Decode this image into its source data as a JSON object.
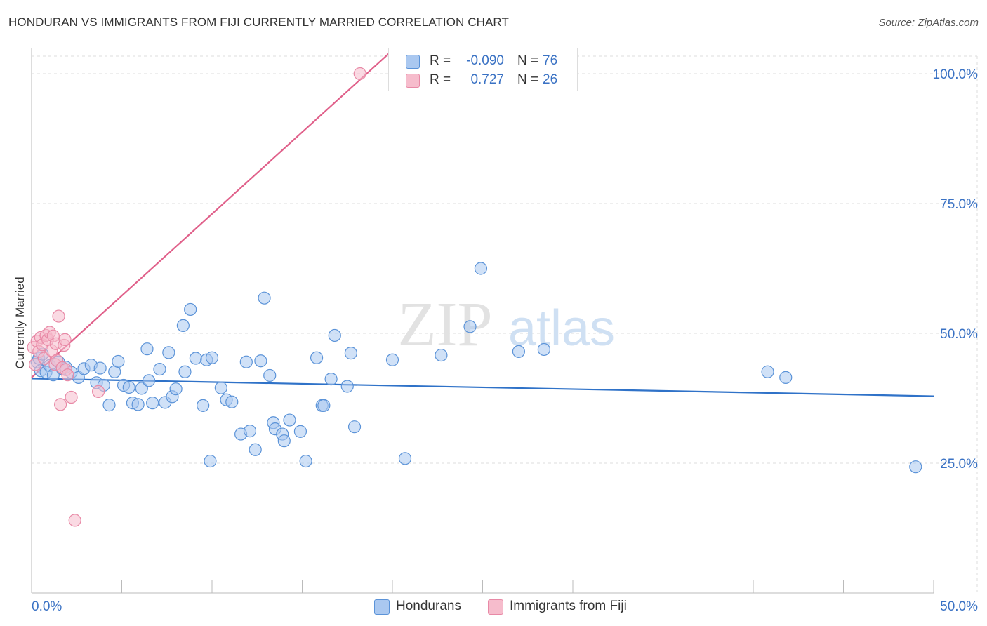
{
  "header": {
    "title": "HONDURAN VS IMMIGRANTS FROM FIJI CURRENTLY MARRIED CORRELATION CHART",
    "source": "Source: ZipAtlas.com"
  },
  "colors": {
    "blue_fill": "#aac8f0",
    "blue_stroke": "#5b93d8",
    "blue_line": "#2f72c8",
    "pink_fill": "#f6bccc",
    "pink_stroke": "#e889a6",
    "pink_line": "#e0608a",
    "axis_text": "#3a72c4",
    "grid": "#dddddd"
  },
  "watermark": {
    "zip": "ZIP",
    "atlas": "atlas"
  },
  "legend_top": {
    "rows": [
      {
        "r_label": "R =",
        "r_value": "-0.090",
        "n_label": "N =",
        "n_value": "76",
        "series": "blue"
      },
      {
        "r_label": "R =",
        "r_value": "0.727",
        "n_label": "N =",
        "n_value": "26",
        "series": "pink"
      }
    ]
  },
  "chart_data": {
    "type": "scatter",
    "title": "HONDURAN VS IMMIGRANTS FROM FIJI CURRENTLY MARRIED CORRELATION CHART",
    "xlabel": "",
    "ylabel": "Currently Married",
    "xlim": [
      0,
      50
    ],
    "ylim": [
      0,
      105
    ],
    "x_tick_labels": [
      "0.0%",
      "50.0%"
    ],
    "y_ticks": [
      25,
      50,
      75,
      100
    ],
    "y_tick_labels": [
      "25.0%",
      "50.0%",
      "75.0%",
      "100.0%"
    ],
    "grid": true,
    "series": [
      {
        "name": "Hondurans",
        "color": "blue",
        "trend": {
          "x0": 0,
          "y0": 41.3,
          "x1": 50,
          "y1": 37.9
        },
        "points": [
          [
            0.3,
            44.5
          ],
          [
            0.4,
            45.2
          ],
          [
            0.5,
            42.8
          ],
          [
            0.6,
            46.0
          ],
          [
            0.8,
            42.5
          ],
          [
            1.0,
            43.8
          ],
          [
            1.2,
            42.0
          ],
          [
            1.5,
            44.5
          ],
          [
            1.7,
            43.2
          ],
          [
            1.9,
            43.5
          ],
          [
            2.2,
            42.5
          ],
          [
            2.6,
            41.5
          ],
          [
            2.9,
            43.2
          ],
          [
            3.3,
            43.9
          ],
          [
            3.6,
            40.5
          ],
          [
            3.8,
            43.3
          ],
          [
            4.0,
            40.0
          ],
          [
            4.3,
            36.2
          ],
          [
            4.6,
            42.6
          ],
          [
            4.8,
            44.6
          ],
          [
            5.1,
            40.0
          ],
          [
            5.4,
            39.6
          ],
          [
            5.6,
            36.6
          ],
          [
            5.9,
            36.3
          ],
          [
            6.1,
            39.4
          ],
          [
            6.4,
            47.0
          ],
          [
            6.5,
            40.9
          ],
          [
            6.7,
            36.6
          ],
          [
            7.1,
            43.1
          ],
          [
            7.4,
            36.7
          ],
          [
            7.6,
            46.3
          ],
          [
            7.8,
            37.8
          ],
          [
            8.0,
            39.3
          ],
          [
            8.4,
            51.5
          ],
          [
            8.5,
            42.6
          ],
          [
            8.8,
            54.6
          ],
          [
            9.1,
            45.2
          ],
          [
            9.5,
            36.1
          ],
          [
            9.7,
            44.9
          ],
          [
            9.9,
            25.4
          ],
          [
            10.0,
            45.3
          ],
          [
            10.5,
            39.5
          ],
          [
            10.8,
            37.2
          ],
          [
            11.1,
            36.8
          ],
          [
            11.6,
            30.6
          ],
          [
            11.9,
            44.5
          ],
          [
            12.1,
            31.2
          ],
          [
            12.4,
            27.6
          ],
          [
            12.7,
            44.7
          ],
          [
            12.9,
            56.8
          ],
          [
            13.2,
            41.9
          ],
          [
            13.4,
            32.8
          ],
          [
            13.5,
            31.6
          ],
          [
            13.9,
            30.6
          ],
          [
            14.0,
            29.3
          ],
          [
            14.3,
            33.3
          ],
          [
            14.9,
            31.1
          ],
          [
            15.2,
            25.4
          ],
          [
            15.8,
            45.3
          ],
          [
            16.1,
            36.1
          ],
          [
            16.2,
            36.1
          ],
          [
            16.6,
            41.2
          ],
          [
            16.8,
            49.6
          ],
          [
            17.5,
            39.8
          ],
          [
            17.7,
            46.2
          ],
          [
            17.9,
            32.0
          ],
          [
            20.0,
            44.9
          ],
          [
            20.7,
            25.9
          ],
          [
            22.7,
            45.8
          ],
          [
            24.3,
            51.3
          ],
          [
            24.9,
            62.5
          ],
          [
            27.0,
            46.5
          ],
          [
            28.4,
            46.9
          ],
          [
            40.8,
            42.6
          ],
          [
            41.8,
            41.5
          ],
          [
            49.0,
            24.3
          ]
        ]
      },
      {
        "name": "Immigrants from Fiji",
        "color": "pink",
        "trend": {
          "x0": 0,
          "y0": 41.5,
          "x1": 20,
          "y1": 104.5
        },
        "points": [
          [
            0.1,
            47.3
          ],
          [
            0.2,
            44.0
          ],
          [
            0.3,
            48.5
          ],
          [
            0.4,
            46.5
          ],
          [
            0.5,
            49.2
          ],
          [
            0.6,
            47.8
          ],
          [
            0.7,
            45.2
          ],
          [
            0.8,
            49.6
          ],
          [
            0.9,
            48.8
          ],
          [
            1.0,
            50.2
          ],
          [
            1.1,
            46.7
          ],
          [
            1.2,
            49.5
          ],
          [
            1.3,
            44.0
          ],
          [
            1.35,
            48.0
          ],
          [
            1.4,
            44.8
          ],
          [
            1.5,
            53.3
          ],
          [
            1.6,
            36.3
          ],
          [
            1.7,
            43.4
          ],
          [
            1.8,
            47.7
          ],
          [
            1.85,
            48.8
          ],
          [
            1.9,
            43.0
          ],
          [
            2.0,
            42.0
          ],
          [
            2.2,
            37.7
          ],
          [
            2.4,
            14.0
          ],
          [
            3.7,
            38.8
          ],
          [
            18.2,
            100.0
          ]
        ]
      }
    ]
  },
  "legend_bottom": {
    "items": [
      {
        "label": "Hondurans",
        "series": "blue"
      },
      {
        "label": "Immigrants from Fiji",
        "series": "pink"
      }
    ]
  }
}
